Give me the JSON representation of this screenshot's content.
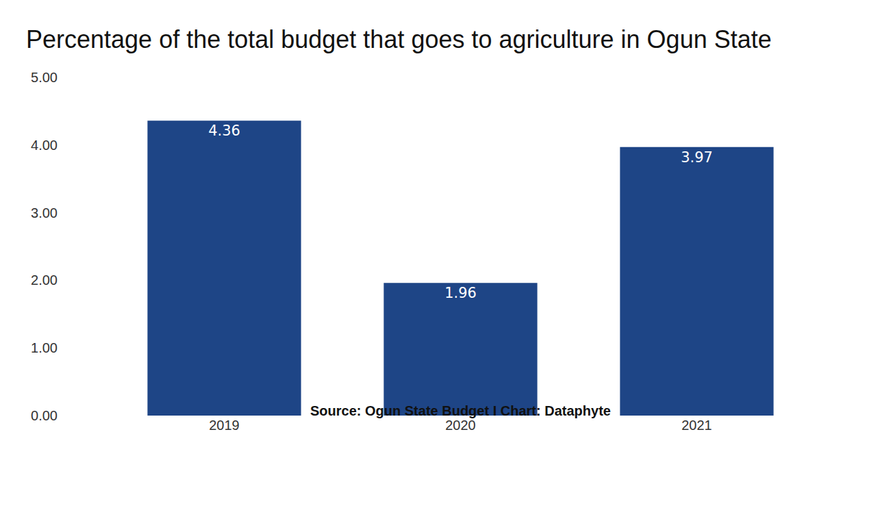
{
  "chart_data": {
    "type": "bar",
    "title": "Percentage of the total budget that goes to agriculture in Ogun State",
    "source": "Source: Ogun State Budget I Chart: Dataphyte",
    "categories": [
      "2019",
      "2020",
      "2021"
    ],
    "values": [
      4.36,
      1.96,
      3.97
    ],
    "color": "#1e4586",
    "ylim": [
      0,
      5
    ],
    "yticks": [
      {
        "value": 0,
        "label": "0.00"
      },
      {
        "value": 1,
        "label": "1.00"
      },
      {
        "value": 2,
        "label": "2.00"
      },
      {
        "value": 3,
        "label": "3.00"
      },
      {
        "value": 4,
        "label": "4.00"
      },
      {
        "value": 5,
        "label": "5.00"
      }
    ],
    "grid": false,
    "data_labels": true
  }
}
